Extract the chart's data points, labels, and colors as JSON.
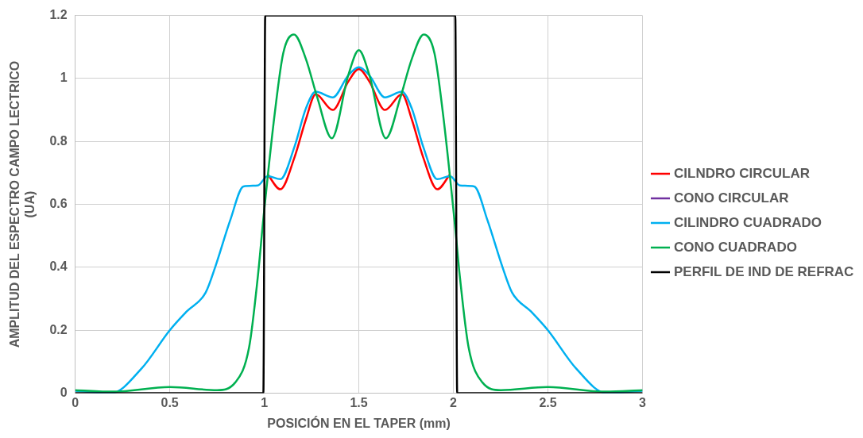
{
  "chart_data": {
    "type": "line",
    "xlabel": "POSICIÓN EN EL TAPER (mm)",
    "ylabel": "AMPLITUD DEL ESPECTRO CAMPO LECTRICO (UA)",
    "xlim": [
      0,
      3
    ],
    "xticks": [
      0,
      0.5,
      1,
      1.5,
      2,
      2.5,
      3
    ],
    "ylim": [
      0,
      1.2
    ],
    "yticks": [
      0,
      0.2,
      0.4,
      0.6,
      0.8,
      1,
      1.2
    ],
    "grid": true,
    "legend": "right",
    "marker": "none",
    "line_style": "solid",
    "series": [
      {
        "name": "CILNDRO CIRCULAR",
        "color": "#ff0000",
        "x": [
          1.018,
          1.085,
          1.16,
          1.22,
          1.272,
          1.362,
          1.444,
          1.5,
          1.556,
          1.638,
          1.728,
          1.78,
          1.84,
          1.915,
          1.982
        ],
        "values": [
          0.695,
          0.648,
          0.75,
          0.87,
          0.95,
          0.9,
          0.99,
          1.03,
          0.99,
          0.9,
          0.95,
          0.87,
          0.75,
          0.648,
          0.695
        ]
      },
      {
        "name": "CONO CIRCULAR",
        "color": "#7030a0",
        "values": [
          null
        ]
      },
      {
        "name": "CILINDRO CUADRADO",
        "color": "#00b0f0",
        "x": [
          0,
          0.19,
          0.35,
          0.5,
          0.59,
          0.69,
          0.74,
          0.82,
          0.89,
          0.965,
          1.018,
          1.085,
          1.16,
          1.22,
          1.272,
          1.362,
          1.444,
          1.5,
          1.556,
          1.638,
          1.728,
          1.78,
          1.84,
          1.915,
          1.982,
          2.035,
          2.11,
          2.18,
          2.26,
          2.31,
          2.41,
          2.5,
          2.65,
          2.81,
          3
        ],
        "values": [
          0.008,
          0,
          0.078,
          0.2,
          0.26,
          0.32,
          0.4,
          0.55,
          0.657,
          0.66,
          0.69,
          0.68,
          0.784,
          0.905,
          0.958,
          0.94,
          1.01,
          1.036,
          1.01,
          0.94,
          0.958,
          0.905,
          0.784,
          0.68,
          0.69,
          0.66,
          0.657,
          0.55,
          0.4,
          0.32,
          0.26,
          0.2,
          0.078,
          0,
          0.008
        ]
      },
      {
        "name": "CONO CUADRADO",
        "color": "#00b050",
        "x": [
          0,
          0.2,
          0.5,
          0.75,
          0.846,
          0.92,
          0.965,
          0.996,
          1.055,
          1.1,
          1.157,
          1.22,
          1.28,
          1.357,
          1.444,
          1.5,
          1.556,
          1.643,
          1.72,
          1.78,
          1.843,
          1.9,
          1.945,
          2.004,
          2.035,
          2.08,
          2.154,
          2.25,
          2.5,
          2.8,
          3
        ],
        "values": [
          0.01,
          0.005,
          0.02,
          0.01,
          0.034,
          0.147,
          0.366,
          0.56,
          0.888,
          1.08,
          1.14,
          1.062,
          0.94,
          0.81,
          1.01,
          1.09,
          1.01,
          0.81,
          0.94,
          1.062,
          1.14,
          1.08,
          0.888,
          0.56,
          0.366,
          0.147,
          0.034,
          0.01,
          0.02,
          0.005,
          0.01
        ]
      },
      {
        "name": "PERFIL DE IND DE REFRAC",
        "color": "#000000",
        "x": [
          0,
          0.995,
          1.005,
          2.01,
          2.02,
          3
        ],
        "values": [
          0,
          0,
          1.2,
          1.2,
          0,
          0
        ]
      }
    ]
  }
}
